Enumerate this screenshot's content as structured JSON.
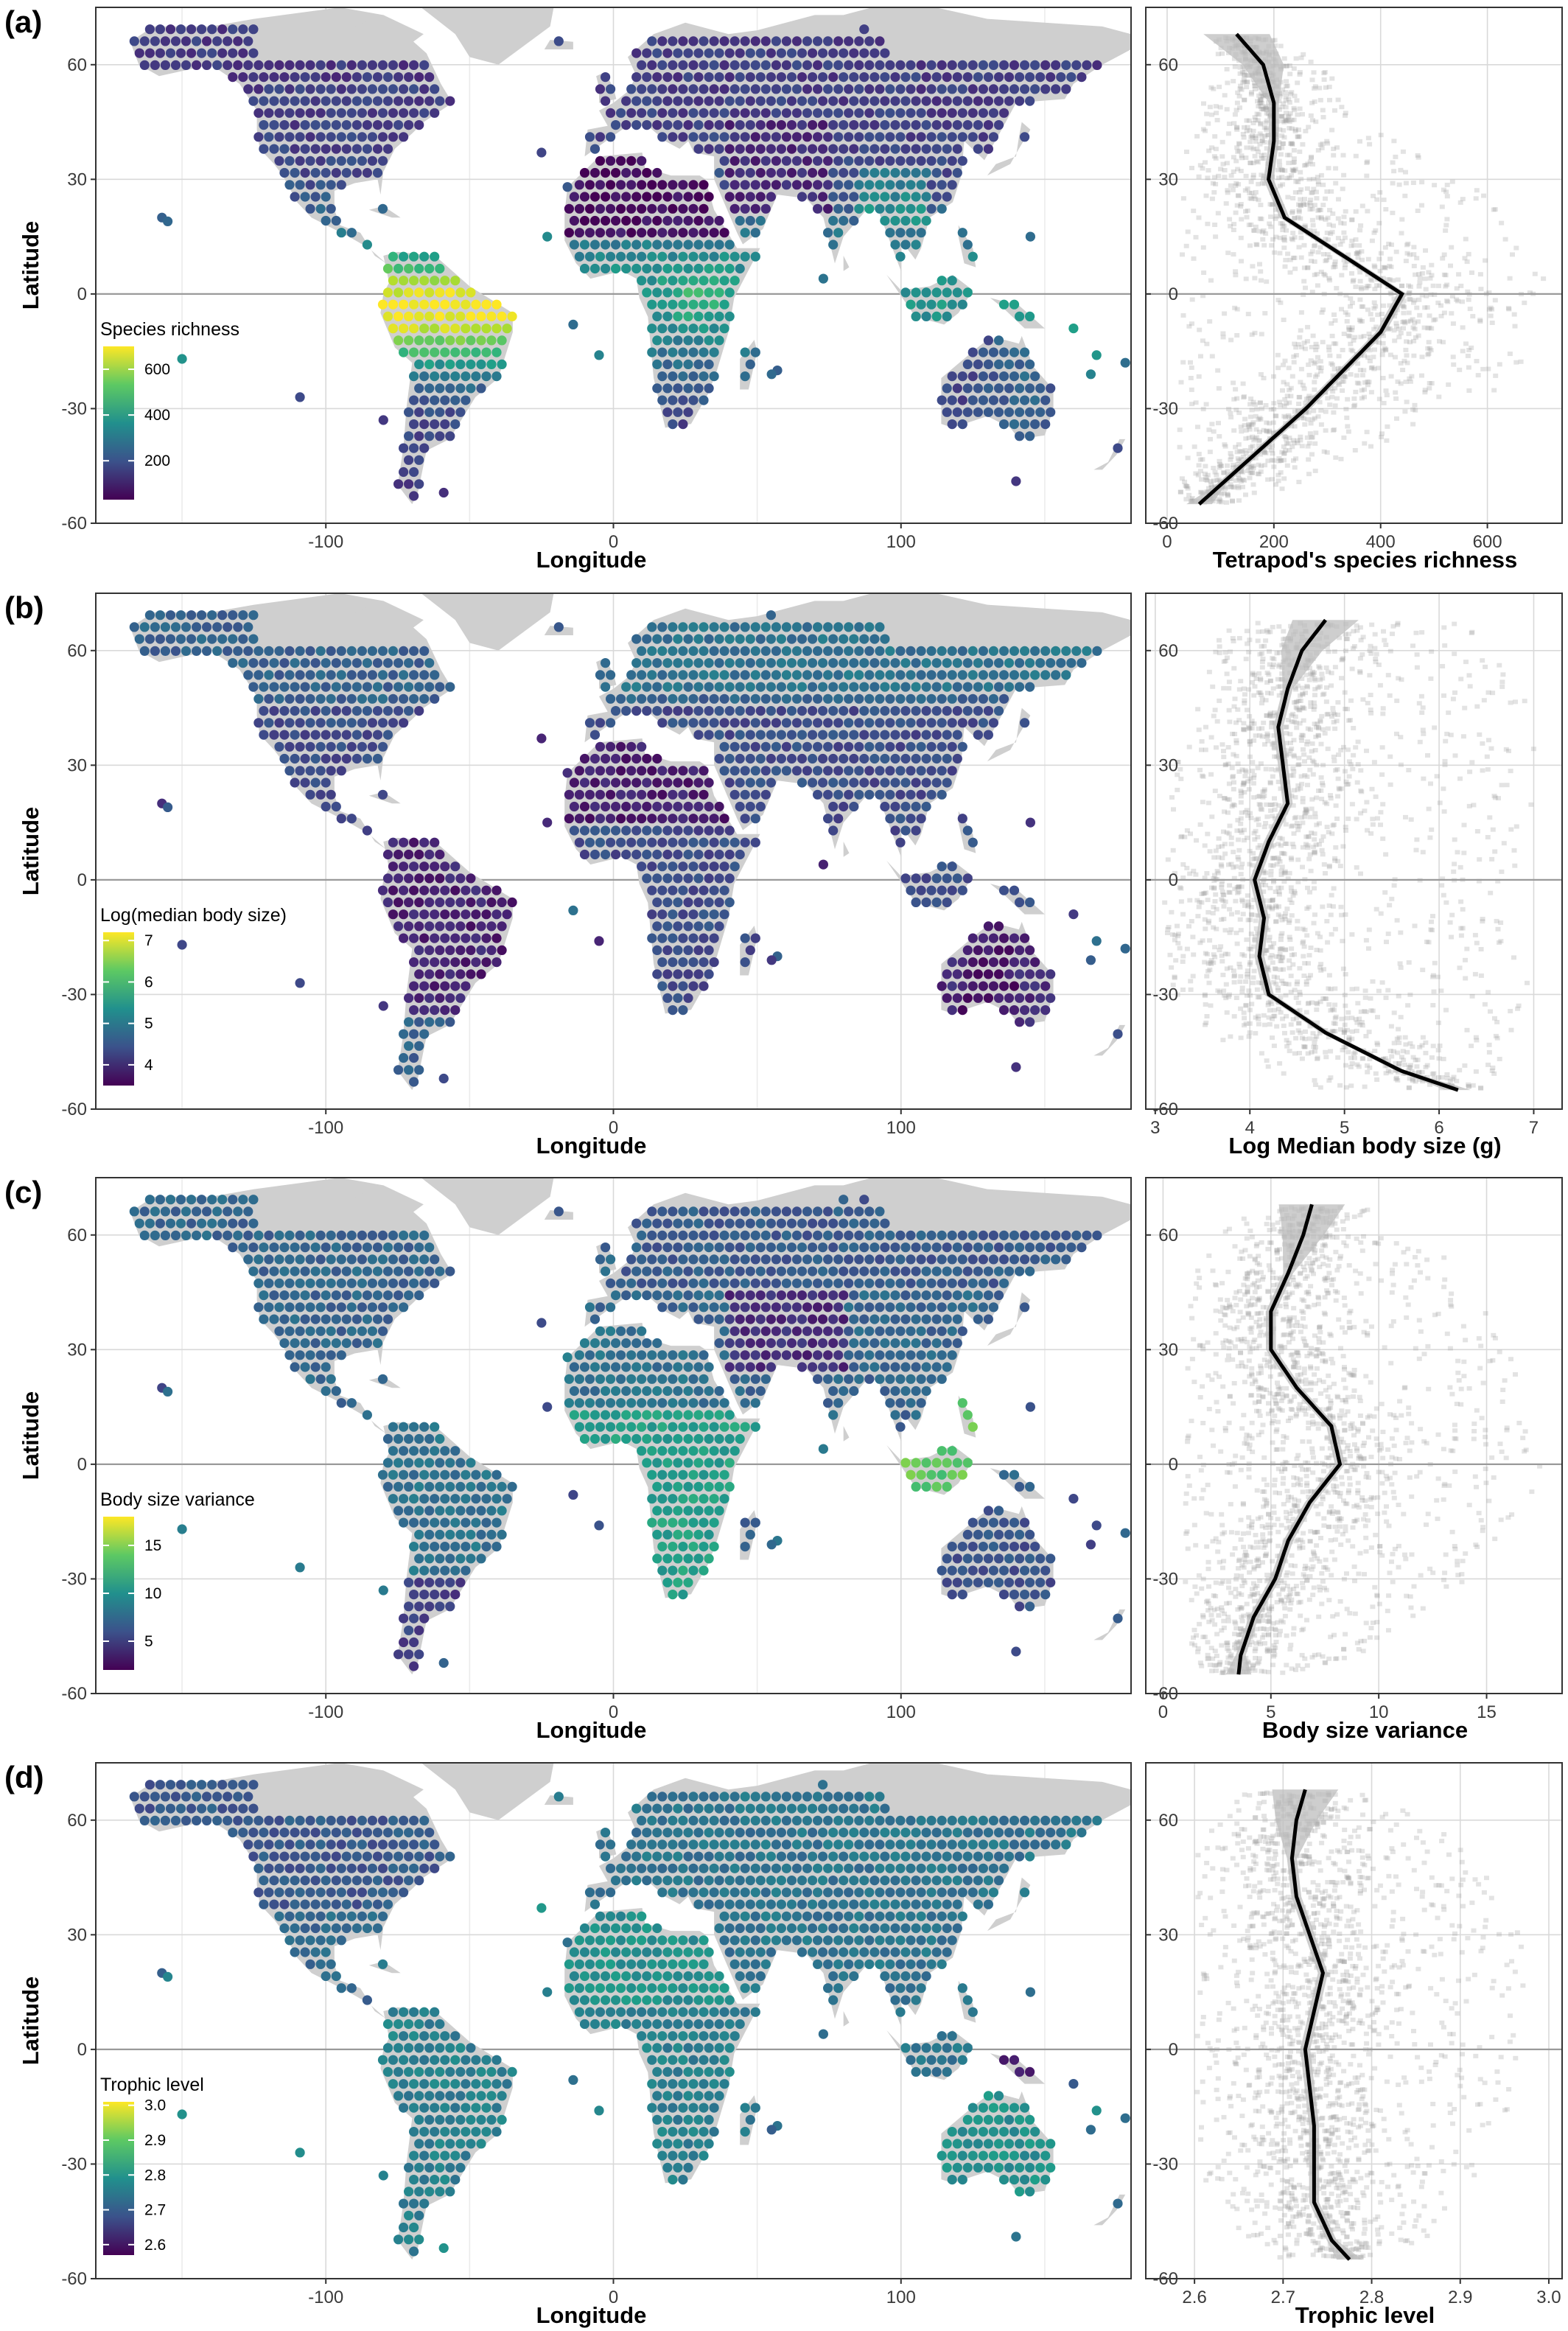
{
  "chart_data": [
    {
      "panel": "(a)",
      "map": {
        "type": "heatmap",
        "xlabel": "Longitude",
        "ylabel": "Latitude",
        "xlim": [
          -180,
          180
        ],
        "ylim": [
          -60,
          75
        ],
        "x_ticks": [
          -100,
          0,
          100
        ],
        "y_ticks": [
          -60,
          -30,
          0,
          30,
          60
        ],
        "legend": {
          "title": "Species richness",
          "ticks": [
            200,
            400,
            600
          ],
          "range": [
            30,
            700
          ],
          "placement": "bottom-left"
        }
      },
      "profile": {
        "type": "scatter",
        "xlabel": "Tetrapod's species richness",
        "ylabel": "",
        "xlim": [
          -40,
          740
        ],
        "ylim": [
          -60,
          75
        ],
        "x_ticks": [
          0,
          200,
          400,
          600
        ],
        "y_ticks": [
          -60,
          -30,
          0,
          30,
          60
        ],
        "smooth": {
          "lat": [
            68,
            60,
            50,
            40,
            30,
            20,
            10,
            0,
            -10,
            -20,
            -30,
            -40,
            -50,
            -55
          ],
          "value": [
            130,
            180,
            200,
            200,
            190,
            220,
            330,
            440,
            400,
            330,
            260,
            180,
            100,
            60
          ]
        },
        "points_spread": {
          "lat": [
            68,
            60,
            50,
            40,
            30,
            20,
            10,
            0,
            -10,
            -20,
            -30,
            -40,
            -50,
            -55
          ],
          "min": [
            80,
            100,
            60,
            20,
            20,
            20,
            20,
            40,
            20,
            20,
            20,
            20,
            20,
            30
          ],
          "max": [
            220,
            300,
            330,
            420,
            560,
            640,
            700,
            710,
            700,
            680,
            560,
            380,
            240,
            120
          ]
        }
      }
    },
    {
      "panel": "(b)",
      "map": {
        "type": "heatmap",
        "xlabel": "Longitude",
        "ylabel": "Latitude",
        "xlim": [
          -180,
          180
        ],
        "ylim": [
          -60,
          75
        ],
        "x_ticks": [
          -100,
          0,
          100
        ],
        "y_ticks": [
          -60,
          -30,
          0,
          30,
          60
        ],
        "legend": {
          "title": "Log(median body size)",
          "ticks": [
            4,
            5,
            6,
            7
          ],
          "range": [
            3.5,
            7.2
          ],
          "placement": "bottom-left"
        }
      },
      "profile": {
        "type": "scatter",
        "xlabel": "Log Median body size (g)",
        "ylabel": "",
        "xlim": [
          2.9,
          7.3
        ],
        "ylim": [
          -60,
          75
        ],
        "x_ticks": [
          3,
          4,
          5,
          6,
          7
        ],
        "y_ticks": [
          -60,
          -30,
          0,
          30,
          60
        ],
        "smooth": {
          "lat": [
            68,
            60,
            50,
            40,
            30,
            20,
            10,
            0,
            -10,
            -20,
            -30,
            -40,
            -50,
            -55
          ],
          "value": [
            4.8,
            4.55,
            4.4,
            4.3,
            4.35,
            4.4,
            4.2,
            4.05,
            4.15,
            4.1,
            4.2,
            4.8,
            5.6,
            6.2
          ]
        },
        "points_spread": {
          "lat": [
            68,
            60,
            50,
            40,
            30,
            20,
            10,
            0,
            -10,
            -20,
            -30,
            -40,
            -50,
            -55
          ],
          "min": [
            3.8,
            3.6,
            3.5,
            3.4,
            3.2,
            3.1,
            3.1,
            3.1,
            3.1,
            3.1,
            3.2,
            3.6,
            4.2,
            4.8
          ],
          "max": [
            6.2,
            6.6,
            6.9,
            7.0,
            7.1,
            7.0,
            6.8,
            6.8,
            6.7,
            6.8,
            7.0,
            6.9,
            6.6,
            6.4
          ]
        }
      }
    },
    {
      "panel": "(c)",
      "map": {
        "type": "heatmap",
        "xlabel": "Longitude",
        "ylabel": "Latitude",
        "xlim": [
          -180,
          180
        ],
        "ylim": [
          -60,
          75
        ],
        "x_ticks": [
          -100,
          0,
          100
        ],
        "y_ticks": [
          -60,
          -30,
          0,
          30,
          60
        ],
        "legend": {
          "title": "Body size variance",
          "ticks": [
            5,
            10,
            15
          ],
          "range": [
            2,
            18
          ],
          "placement": "bottom-left"
        }
      },
      "profile": {
        "type": "scatter",
        "xlabel": "Body size variance",
        "ylabel": "",
        "xlim": [
          -0.8,
          18.5
        ],
        "ylim": [
          -60,
          75
        ],
        "x_ticks": [
          0,
          5,
          10,
          15
        ],
        "y_ticks": [
          -60,
          -30,
          0,
          30,
          60
        ],
        "smooth": {
          "lat": [
            68,
            60,
            50,
            40,
            30,
            20,
            10,
            0,
            -10,
            -20,
            -30,
            -40,
            -50,
            -55
          ],
          "value": [
            6.9,
            6.5,
            5.8,
            5.0,
            5.0,
            6.2,
            7.8,
            8.2,
            6.8,
            5.8,
            5.2,
            4.2,
            3.6,
            3.5
          ]
        },
        "points_spread": {
          "lat": [
            68,
            60,
            50,
            40,
            30,
            20,
            10,
            0,
            -10,
            -20,
            -30,
            -40,
            -50,
            -55
          ],
          "min": [
            4.0,
            2.5,
            1.5,
            1.0,
            1.0,
            1.0,
            1.0,
            1.0,
            1.0,
            1.0,
            1.0,
            1.0,
            1.5,
            2.0
          ],
          "max": [
            9.0,
            12.0,
            14.0,
            15.0,
            16.0,
            16.5,
            17.0,
            17.5,
            17.0,
            16.0,
            14.0,
            12.0,
            9.0,
            6.0
          ]
        }
      }
    },
    {
      "panel": "(d)",
      "map": {
        "type": "heatmap",
        "xlabel": "Longitude",
        "ylabel": "Latitude",
        "xlim": [
          -180,
          180
        ],
        "ylim": [
          -60,
          75
        ],
        "x_ticks": [
          -100,
          0,
          100
        ],
        "y_ticks": [
          -60,
          -30,
          0,
          30,
          60
        ],
        "legend": {
          "title": "Trophic level",
          "ticks": [
            2.6,
            2.7,
            2.8,
            2.9,
            3.0
          ],
          "range": [
            2.57,
            3.01
          ],
          "placement": "bottom-left"
        }
      },
      "profile": {
        "type": "scatter",
        "xlabel": "Trophic level",
        "ylabel": "",
        "xlim": [
          2.545,
          3.015
        ],
        "ylim": [
          -60,
          75
        ],
        "x_ticks": [
          2.6,
          2.7,
          2.8,
          2.9,
          3.0
        ],
        "y_ticks": [
          -60,
          -30,
          0,
          30,
          60
        ],
        "smooth": {
          "lat": [
            68,
            60,
            50,
            40,
            30,
            20,
            10,
            0,
            -10,
            -20,
            -30,
            -40,
            -50,
            -55
          ],
          "value": [
            2.725,
            2.715,
            2.71,
            2.715,
            2.73,
            2.745,
            2.735,
            2.725,
            2.73,
            2.735,
            2.735,
            2.735,
            2.755,
            2.775
          ]
        },
        "points_spread": {
          "lat": [
            68,
            60,
            50,
            40,
            30,
            20,
            10,
            0,
            -10,
            -20,
            -30,
            -40,
            -50,
            -55
          ],
          "min": [
            2.66,
            2.62,
            2.6,
            2.6,
            2.6,
            2.6,
            2.6,
            2.6,
            2.6,
            2.6,
            2.6,
            2.62,
            2.66,
            2.7
          ],
          "max": [
            2.8,
            2.86,
            2.92,
            2.95,
            2.97,
            2.98,
            2.98,
            2.97,
            2.96,
            2.95,
            2.93,
            2.9,
            2.86,
            2.82
          ]
        }
      }
    }
  ]
}
